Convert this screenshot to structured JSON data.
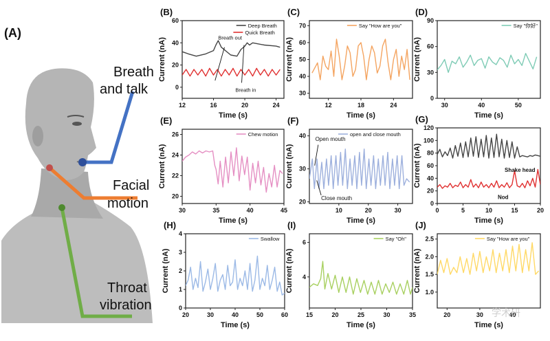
{
  "figure": {
    "panel_a": {
      "letter": "(A)",
      "labels": [
        "Breath and talk",
        "Facial motion",
        "Throat vibration"
      ],
      "label_lines": [
        [
          "Breath",
          "and talk"
        ],
        [
          "Facial",
          "motion"
        ],
        [
          "Throat",
          "vibration"
        ]
      ],
      "colors": {
        "breath": "#4472c4",
        "facial": "#ed7d31",
        "throat": "#70ad47"
      }
    },
    "watermark": "学术研"
  },
  "chart_data": [
    {
      "id": "B",
      "letter": "(B)",
      "type": "line",
      "xlabel": "Time (s)",
      "ylabel": "Current (nA)",
      "xlim": [
        12,
        25
      ],
      "ylim": [
        -10,
        60
      ],
      "xticks": [
        12,
        16,
        20,
        24
      ],
      "yticks": [
        0,
        20,
        40,
        60
      ],
      "legend_position": "top-right",
      "series": [
        {
          "name": "Deep Breath",
          "color": "#444444",
          "x": [
            12,
            12.8,
            13.8,
            15,
            16,
            16.3,
            16.6,
            17,
            18.2,
            19,
            19.5,
            20,
            20.3,
            20.6,
            21,
            22.5,
            24,
            24.5
          ],
          "y": [
            32,
            30,
            28,
            30,
            33,
            38,
            42,
            36,
            29,
            28,
            34,
            37,
            40,
            38,
            40,
            38,
            37,
            36
          ]
        },
        {
          "name": "Quick Breath",
          "color": "#e03030",
          "x": [
            12,
            12.5,
            13,
            13.5,
            14,
            14.5,
            15,
            15.5,
            16,
            16.5,
            17,
            17.5,
            18,
            18.5,
            19,
            19.5,
            20,
            20.5,
            21,
            21.5,
            22,
            22.5,
            23,
            23.5,
            24,
            24.5
          ],
          "y": [
            11,
            16,
            10,
            16,
            11,
            16,
            10,
            17,
            11,
            16,
            10,
            16,
            11,
            17,
            10,
            16,
            11,
            16,
            10,
            17,
            11,
            16,
            10,
            16,
            11,
            16
          ]
        }
      ],
      "annotations": [
        "Breath out",
        "Breath in"
      ]
    },
    {
      "id": "C",
      "letter": "(C)",
      "type": "line",
      "xlabel": "Time (s)",
      "ylabel": "Current (nA)",
      "xlim": [
        8.5,
        27.5
      ],
      "ylim": [
        27,
        73
      ],
      "xticks": [
        12,
        18,
        24
      ],
      "yticks": [
        30,
        40,
        50,
        60,
        70
      ],
      "legend_position": "top-right",
      "series": [
        {
          "name": "Say \"How are you\"",
          "color": "#f4a460",
          "x": [
            9,
            10,
            10.5,
            11,
            11.5,
            12,
            12.5,
            13,
            13.5,
            14,
            14.5,
            15,
            15.5,
            16,
            16.5,
            17,
            17.5,
            18,
            18.5,
            19,
            19.5,
            20,
            20.5,
            21,
            21.5,
            22,
            22.5,
            23,
            23.5,
            24,
            24.5,
            25,
            25.5,
            26,
            26.5,
            27
          ],
          "y": [
            42,
            48,
            38,
            52,
            46,
            44,
            55,
            40,
            62,
            52,
            38,
            46,
            58,
            54,
            40,
            44,
            58,
            60,
            52,
            38,
            50,
            58,
            54,
            42,
            46,
            58,
            62,
            48,
            38,
            50,
            56,
            40,
            52,
            44,
            56,
            38
          ]
        }
      ]
    },
    {
      "id": "D",
      "letter": "(D)",
      "type": "line",
      "xlabel": "Time (s)",
      "ylabel": "Current (nA)",
      "xlim": [
        28,
        56
      ],
      "ylim": [
        0,
        90
      ],
      "xticks": [
        30,
        40,
        50
      ],
      "yticks": [
        0,
        30,
        60,
        90
      ],
      "legend_position": "top-right",
      "series": [
        {
          "name": "Say \"你好\"",
          "color": "#7ecbb5",
          "x": [
            28,
            29,
            30,
            31,
            32,
            33,
            34,
            35,
            36,
            37,
            38,
            39,
            40,
            41,
            42,
            43,
            44,
            45,
            46,
            47,
            48,
            49,
            50,
            51,
            52,
            53,
            54,
            55
          ],
          "y": [
            33,
            38,
            45,
            30,
            43,
            40,
            48,
            36,
            42,
            50,
            38,
            44,
            46,
            35,
            48,
            42,
            39,
            47,
            44,
            36,
            50,
            40,
            45,
            38,
            52,
            43,
            34,
            48
          ]
        }
      ]
    },
    {
      "id": "E",
      "letter": "(E)",
      "type": "line",
      "xlabel": "Time (s)",
      "ylabel": "Current (nA)",
      "xlim": [
        30,
        45
      ],
      "ylim": [
        19.3,
        26.5
      ],
      "xticks": [
        30,
        35,
        40,
        45
      ],
      "yticks": [
        20,
        22,
        24,
        26
      ],
      "legend_position": "top-right",
      "series": [
        {
          "name": "Chew motion",
          "color": "#e58fc3",
          "x": [
            30,
            30.5,
            31,
            31.5,
            32,
            32.5,
            33,
            33.5,
            34,
            34.5,
            34.8,
            35,
            35.3,
            35.6,
            36,
            36.4,
            36.8,
            37.2,
            37.6,
            38,
            38.4,
            38.8,
            39.2,
            39.6,
            40,
            40.4,
            40.8,
            41.2,
            41.6,
            42,
            42.4,
            42.8,
            43.2,
            43.6,
            44,
            44.4,
            44.8
          ],
          "y": [
            23.4,
            23.8,
            24.0,
            24.3,
            24.1,
            24.4,
            24.2,
            24.4,
            24.3,
            24.4,
            23.0,
            22.6,
            21.2,
            23.4,
            20.9,
            23.8,
            21.3,
            24.3,
            22.0,
            24.7,
            21.5,
            23.9,
            22.1,
            23.8,
            20.6,
            23.2,
            21.3,
            23.4,
            21.1,
            22.8,
            20.4,
            22.2,
            20.9,
            23.0,
            20.9,
            22.5,
            22.2
          ]
        }
      ]
    },
    {
      "id": "F",
      "letter": "(F)",
      "type": "line",
      "xlabel": "Time (s)",
      "ylabel": "Current (nA)",
      "xlim": [
        0,
        35
      ],
      "ylim": [
        19.5,
        42
      ],
      "xticks": [
        10,
        20,
        30
      ],
      "yticks": [
        20,
        30,
        40
      ],
      "legend_position": "top-right",
      "series": [
        {
          "name": "open and close mouth",
          "color": "#9db0dd",
          "x": [
            0,
            1,
            1.7,
            2.6,
            3.3,
            4.2,
            4.9,
            5.8,
            6.5,
            7.4,
            8.1,
            9,
            9.7,
            10.6,
            11.3,
            12.2,
            12.9,
            13.8,
            14.5,
            15.4,
            16.1,
            17,
            17.7,
            18.6,
            19.3,
            20.2,
            20.9,
            21.8,
            22.5,
            23.4,
            24.1,
            25,
            25.7,
            26.6,
            27.3,
            28.2,
            28.9,
            29.8,
            30.5,
            31.4,
            32.1,
            33,
            34
          ],
          "y": [
            27,
            33,
            24,
            33,
            24,
            32,
            24,
            33,
            25,
            34,
            24,
            34,
            25,
            35,
            25,
            36,
            24,
            33,
            25,
            34,
            24,
            35,
            25,
            36,
            24,
            33,
            25,
            34,
            24,
            33,
            25,
            34,
            25,
            35,
            24,
            33,
            25,
            34,
            24,
            34,
            25,
            27,
            26
          ]
        }
      ],
      "annotations": [
        "Open mouth",
        "Close mouth"
      ]
    },
    {
      "id": "G",
      "letter": "(G)",
      "type": "line",
      "xlabel": "Time (s)",
      "ylabel": "Current (nA)",
      "xlim": [
        0,
        20
      ],
      "ylim": [
        0,
        120
      ],
      "xticks": [
        0,
        5,
        10,
        15,
        20
      ],
      "yticks": [
        0,
        20,
        40,
        60,
        80,
        100,
        120
      ],
      "series": [
        {
          "name": "Shake head",
          "color": "#444444",
          "x": [
            0,
            0.5,
            1,
            1.5,
            2,
            2.5,
            3,
            3.5,
            4,
            4.5,
            5,
            5.5,
            6,
            6.5,
            7,
            7.5,
            8,
            8.5,
            9,
            9.5,
            10,
            10.5,
            11,
            11.5,
            12,
            12.5,
            13,
            13.5,
            14,
            14.5,
            15,
            15.5,
            16,
            16.5,
            17,
            17.5,
            18,
            18.5,
            19,
            19.5,
            20
          ],
          "y": [
            78,
            86,
            74,
            82,
            76,
            88,
            72,
            92,
            75,
            96,
            73,
            98,
            74,
            104,
            75,
            106,
            73,
            102,
            74,
            108,
            72,
            104,
            73,
            110,
            74,
            102,
            72,
            100,
            73,
            98,
            72,
            90,
            74,
            76,
            75,
            74,
            76,
            75,
            77,
            76,
            75
          ]
        },
        {
          "name": "Nod",
          "color": "#e03030",
          "x": [
            0,
            0.5,
            1,
            1.5,
            2,
            2.5,
            3,
            3.5,
            4,
            4.5,
            5,
            5.5,
            6,
            6.5,
            7,
            7.5,
            8,
            8.5,
            9,
            9.5,
            10,
            10.5,
            11,
            11.5,
            12,
            12.5,
            13,
            13.5,
            14,
            14.5,
            15,
            15.5,
            16,
            16.5,
            17,
            17.5,
            18,
            18.5,
            19,
            19.5,
            20
          ],
          "y": [
            26,
            30,
            24,
            28,
            26,
            32,
            25,
            29,
            27,
            34,
            25,
            30,
            26,
            38,
            26,
            31,
            25,
            34,
            26,
            30,
            25,
            32,
            26,
            36,
            25,
            30,
            26,
            33,
            25,
            30,
            52,
            28,
            26,
            32,
            25,
            36,
            28,
            40,
            26,
            54,
            30
          ]
        }
      ]
    },
    {
      "id": "H",
      "letter": "(H)",
      "type": "line",
      "xlabel": "Time (s)",
      "ylabel": "Current (nA)",
      "xlim": [
        20,
        60
      ],
      "ylim": [
        0,
        4
      ],
      "xticks": [
        20,
        30,
        40,
        50,
        60
      ],
      "yticks": [
        0,
        1,
        2,
        3,
        4
      ],
      "legend_position": "top-right",
      "series": [
        {
          "name": "Swallow",
          "color": "#9bb9e6",
          "x": [
            20,
            21,
            22,
            23,
            24,
            25,
            26,
            27,
            28,
            29,
            30,
            31,
            32,
            33,
            34,
            35,
            36,
            37,
            38,
            39,
            40,
            41,
            42,
            43,
            44,
            45,
            46,
            47,
            48,
            49,
            50,
            51,
            52,
            53,
            54,
            55,
            56,
            57,
            58,
            59,
            60
          ],
          "y": [
            1.2,
            1.5,
            2.2,
            1.0,
            1.6,
            1.1,
            2.5,
            0.9,
            1.4,
            2.1,
            1.0,
            1.6,
            2.4,
            0.9,
            1.5,
            1.8,
            1.0,
            2.3,
            1.2,
            1.4,
            2.6,
            1.0,
            1.6,
            1.2,
            2.0,
            1.0,
            2.4,
            0.9,
            1.5,
            2.8,
            1.0,
            1.6,
            1.2,
            2.3,
            1.0,
            1.5,
            2.2,
            0.9,
            1.4,
            0.7,
            0.8
          ]
        }
      ]
    },
    {
      "id": "I",
      "letter": "(I)",
      "type": "line",
      "xlabel": "Time (s)",
      "ylabel": "Current (nA)",
      "xlim": [
        15,
        35
      ],
      "ylim": [
        2.2,
        6.5
      ],
      "xticks": [
        15,
        20,
        25,
        30,
        35
      ],
      "yticks": [
        2,
        4,
        6
      ],
      "legend_position": "top-right",
      "series": [
        {
          "name": "Say \"Oh\"",
          "color": "#a8d060",
          "x": [
            15,
            15.8,
            16.6,
            17.2,
            17.6,
            18,
            18.6,
            19.3,
            20,
            20.7,
            21.4,
            22.1,
            22.8,
            23.5,
            24.2,
            24.9,
            25.6,
            26.3,
            27,
            27.7,
            28.4,
            29.1,
            29.8,
            30.5,
            31.2,
            31.9,
            32.6,
            33.3,
            34,
            34.6,
            35
          ],
          "y": [
            3.4,
            3.6,
            3.5,
            3.9,
            4.9,
            3.3,
            4.2,
            3.3,
            4.1,
            3.1,
            4.0,
            3.1,
            4.0,
            3.0,
            3.9,
            3.1,
            3.8,
            3.0,
            3.7,
            3.0,
            3.8,
            3.0,
            3.6,
            3.1,
            3.7,
            3.0,
            3.6,
            3.0,
            3.8,
            3.0,
            3.4
          ]
        }
      ]
    },
    {
      "id": "J",
      "letter": "(J)",
      "type": "line",
      "xlabel": "Time (s)",
      "ylabel": "Current (nA)",
      "xlim": [
        17,
        48.5
      ],
      "ylim": [
        0.55,
        2.65
      ],
      "xticks": [
        20,
        30,
        40
      ],
      "yticks": [
        1.0,
        1.5,
        2.0,
        2.5
      ],
      "legend_position": "top-right",
      "series": [
        {
          "name": "Say \"How are you\"",
          "color": "#ffd966",
          "x": [
            17,
            18,
            19,
            20,
            21,
            22,
            23,
            24,
            25,
            26,
            27,
            28,
            29,
            30,
            31,
            32,
            33,
            34,
            35,
            36,
            37,
            38,
            39,
            40,
            41,
            42,
            43,
            44,
            45,
            46,
            47,
            48
          ],
          "y": [
            1.5,
            1.9,
            1.55,
            1.95,
            1.5,
            1.7,
            1.55,
            2.0,
            1.55,
            1.95,
            1.5,
            2.1,
            1.6,
            2.15,
            1.55,
            2.0,
            1.6,
            2.2,
            1.55,
            2.1,
            1.6,
            2.2,
            1.55,
            2.3,
            1.6,
            2.35,
            1.55,
            2.2,
            1.6,
            2.4,
            1.5,
            1.6
          ]
        }
      ]
    }
  ]
}
